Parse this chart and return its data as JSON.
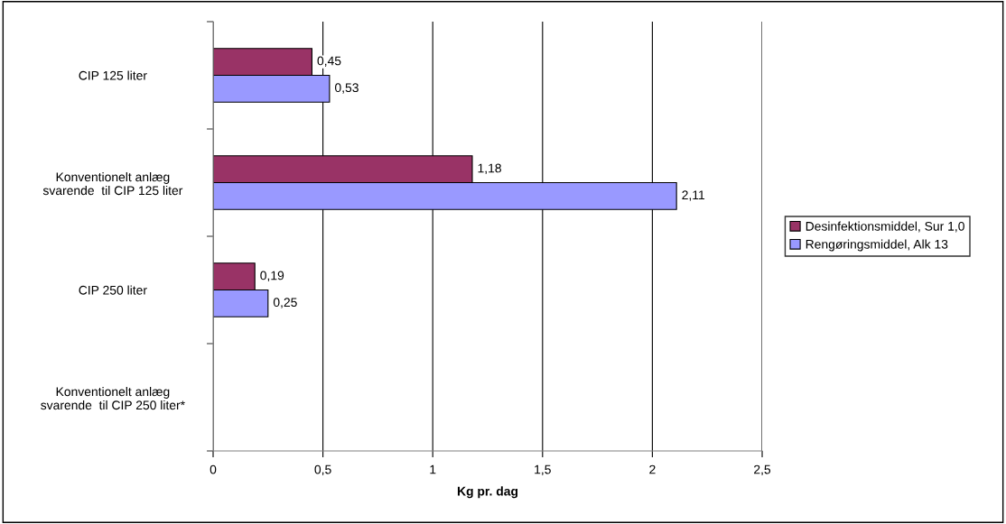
{
  "chart_data": {
    "type": "bar",
    "orientation": "horizontal",
    "xlabel": "Kg pr. dag",
    "categories": [
      "CIP 125 liter",
      "Konventionelt anlæg\nsvarende  til CIP 125 liter",
      "CIP 250 liter",
      "Konventionelt anlæg\nsvarende  til CIP 250 liter*"
    ],
    "series": [
      {
        "name": "Desinfektionsmiddel, Sur 1,0",
        "color": "#993366",
        "values": [
          0.45,
          1.18,
          0.19,
          null
        ],
        "value_labels": [
          "0,45",
          "1,18",
          "0,19",
          null
        ]
      },
      {
        "name": "Rengøringsmiddel, Alk 13",
        "color": "#9999ff",
        "values": [
          0.53,
          2.11,
          0.25,
          null
        ],
        "value_labels": [
          "0,53",
          "2,11",
          "0,25",
          null
        ]
      }
    ],
    "xlim": [
      0,
      2.5
    ],
    "xticks": [
      0,
      {
        "value": 0.5,
        "label": "0,5"
      },
      1,
      {
        "value": 1.5,
        "label": "1,5"
      },
      2,
      {
        "value": 2.5,
        "label": "2,5"
      }
    ],
    "grid": "x",
    "legend": "right"
  }
}
